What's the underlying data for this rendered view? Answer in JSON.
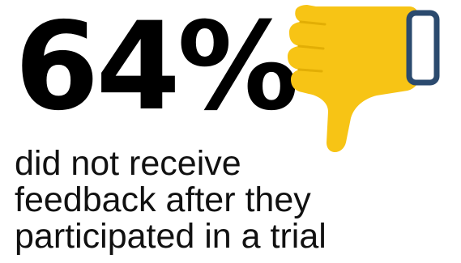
{
  "stat": {
    "value": "64%"
  },
  "caption": {
    "lines": [
      "did not receive",
      "feedback after they",
      "participated in a trial"
    ]
  },
  "icon": {
    "name": "thumbs-down-icon",
    "fill_color": "#F7C415",
    "cuff_color": "#2B4A6E"
  }
}
